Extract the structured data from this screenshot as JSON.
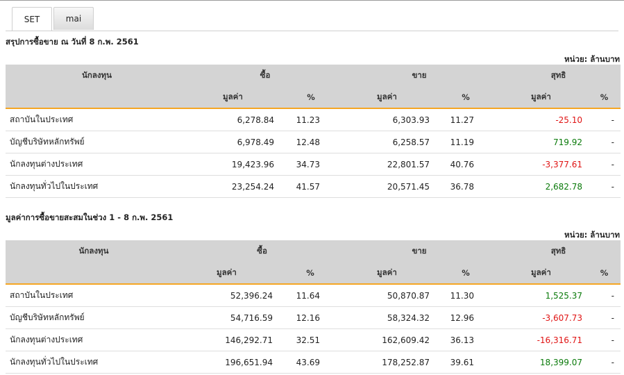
{
  "tabs": [
    {
      "label": "SET",
      "active": true
    },
    {
      "label": "mai",
      "active": false
    }
  ],
  "unit_label": "หน่วย: ล้านบาท",
  "columns": {
    "investor": "นักลงทุน",
    "buy": "ซื้อ",
    "sell": "ขาย",
    "net": "สุทธิ",
    "value": "มูลค่า",
    "percent": "%"
  },
  "daily": {
    "title": "สรุปการซื้อขาย ณ วันที่ 8 ก.พ. 2561",
    "rows": [
      {
        "name": "สถาบันในประเทศ",
        "buy_value": "6,278.84",
        "buy_pct": "11.23",
        "sell_value": "6,303.93",
        "sell_pct": "11.27",
        "net_value": "-25.10",
        "net_pct": "-",
        "net_sign": "neg"
      },
      {
        "name": "บัญชีบริษัทหลักทรัพย์",
        "buy_value": "6,978.49",
        "buy_pct": "12.48",
        "sell_value": "6,258.57",
        "sell_pct": "11.19",
        "net_value": "719.92",
        "net_pct": "-",
        "net_sign": "pos"
      },
      {
        "name": "นักลงทุนต่างประเทศ",
        "buy_value": "19,423.96",
        "buy_pct": "34.73",
        "sell_value": "22,801.57",
        "sell_pct": "40.76",
        "net_value": "-3,377.61",
        "net_pct": "-",
        "net_sign": "neg"
      },
      {
        "name": "นักลงทุนทั่วไปในประเทศ",
        "buy_value": "23,254.24",
        "buy_pct": "41.57",
        "sell_value": "20,571.45",
        "sell_pct": "36.78",
        "net_value": "2,682.78",
        "net_pct": "-",
        "net_sign": "pos"
      }
    ]
  },
  "cumulative": {
    "title": "มูลค่าการซื้อขายสะสมในช่วง 1 - 8 ก.พ. 2561",
    "rows": [
      {
        "name": "สถาบันในประเทศ",
        "buy_value": "52,396.24",
        "buy_pct": "11.64",
        "sell_value": "50,870.87",
        "sell_pct": "11.30",
        "net_value": "1,525.37",
        "net_pct": "-",
        "net_sign": "pos"
      },
      {
        "name": "บัญชีบริษัทหลักทรัพย์",
        "buy_value": "54,716.59",
        "buy_pct": "12.16",
        "sell_value": "58,324.32",
        "sell_pct": "12.96",
        "net_value": "-3,607.73",
        "net_pct": "-",
        "net_sign": "neg"
      },
      {
        "name": "นักลงทุนต่างประเทศ",
        "buy_value": "146,292.71",
        "buy_pct": "32.51",
        "sell_value": "162,609.42",
        "sell_pct": "36.13",
        "net_value": "-16,316.71",
        "net_pct": "-",
        "net_sign": "neg"
      },
      {
        "name": "นักลงทุนทั่วไปในประเทศ",
        "buy_value": "196,651.94",
        "buy_pct": "43.69",
        "sell_value": "178,252.87",
        "sell_pct": "39.61",
        "net_value": "18,399.07",
        "net_pct": "-",
        "net_sign": "pos"
      }
    ]
  },
  "colors": {
    "header_bg": "#d4d4d4",
    "accent_underline": "#f5a623",
    "negative": "#e01414",
    "positive": "#0a7a0a"
  }
}
